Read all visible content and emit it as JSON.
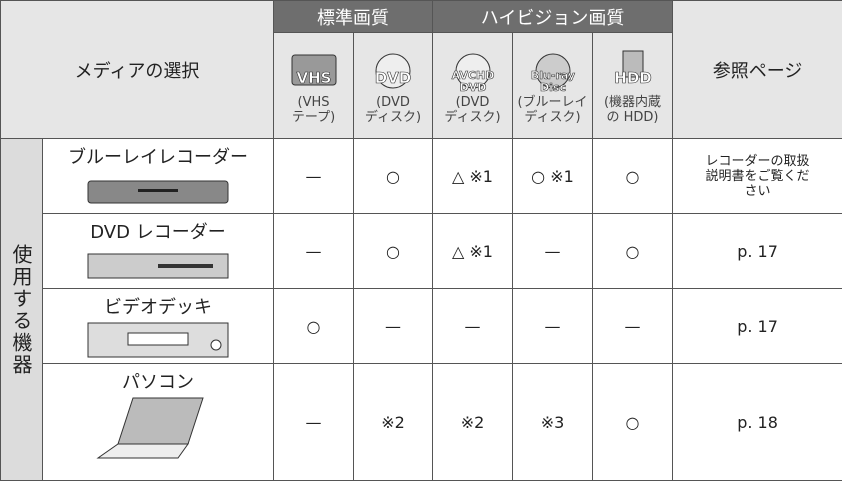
{
  "header": {
    "media_select": "メディアの選択",
    "reference": "参照ページ",
    "groups": [
      "標準画質",
      "ハイビジョン画質"
    ],
    "media": [
      {
        "icon": [
          "VHS"
        ],
        "label": "(VHS\nテープ)"
      },
      {
        "icon": [
          "DVD"
        ],
        "label": "(DVD\nディスク)"
      },
      {
        "icon": [
          "AVCHD",
          "DVD"
        ],
        "label": "(DVD\nディスク)"
      },
      {
        "icon": [
          "Blu-ray",
          "Disc"
        ],
        "label": "(ブルーレイ\nディスク)"
      },
      {
        "icon": [
          "HDD"
        ],
        "label": "(機器内蔵\nの HDD)"
      }
    ]
  },
  "row_group": "使用する機器",
  "rows": [
    {
      "device": "ブルーレイレコーダー",
      "cells": [
        "—",
        "○",
        "△ ※1",
        "○ ※1",
        "○"
      ],
      "reference": "レコーダーの取扱\n説明書をご覧くだ\nさい"
    },
    {
      "device": "DVD レコーダー",
      "cells": [
        "—",
        "○",
        "△ ※1",
        "—",
        "○"
      ],
      "reference": "p. 17"
    },
    {
      "device": "ビデオデッキ",
      "cells": [
        "○",
        "—",
        "—",
        "—",
        "—"
      ],
      "reference": "p. 17"
    },
    {
      "device": "パソコン",
      "cells": [
        "—",
        "※2",
        "※2",
        "※3",
        "○"
      ],
      "reference": "p. 18"
    }
  ]
}
